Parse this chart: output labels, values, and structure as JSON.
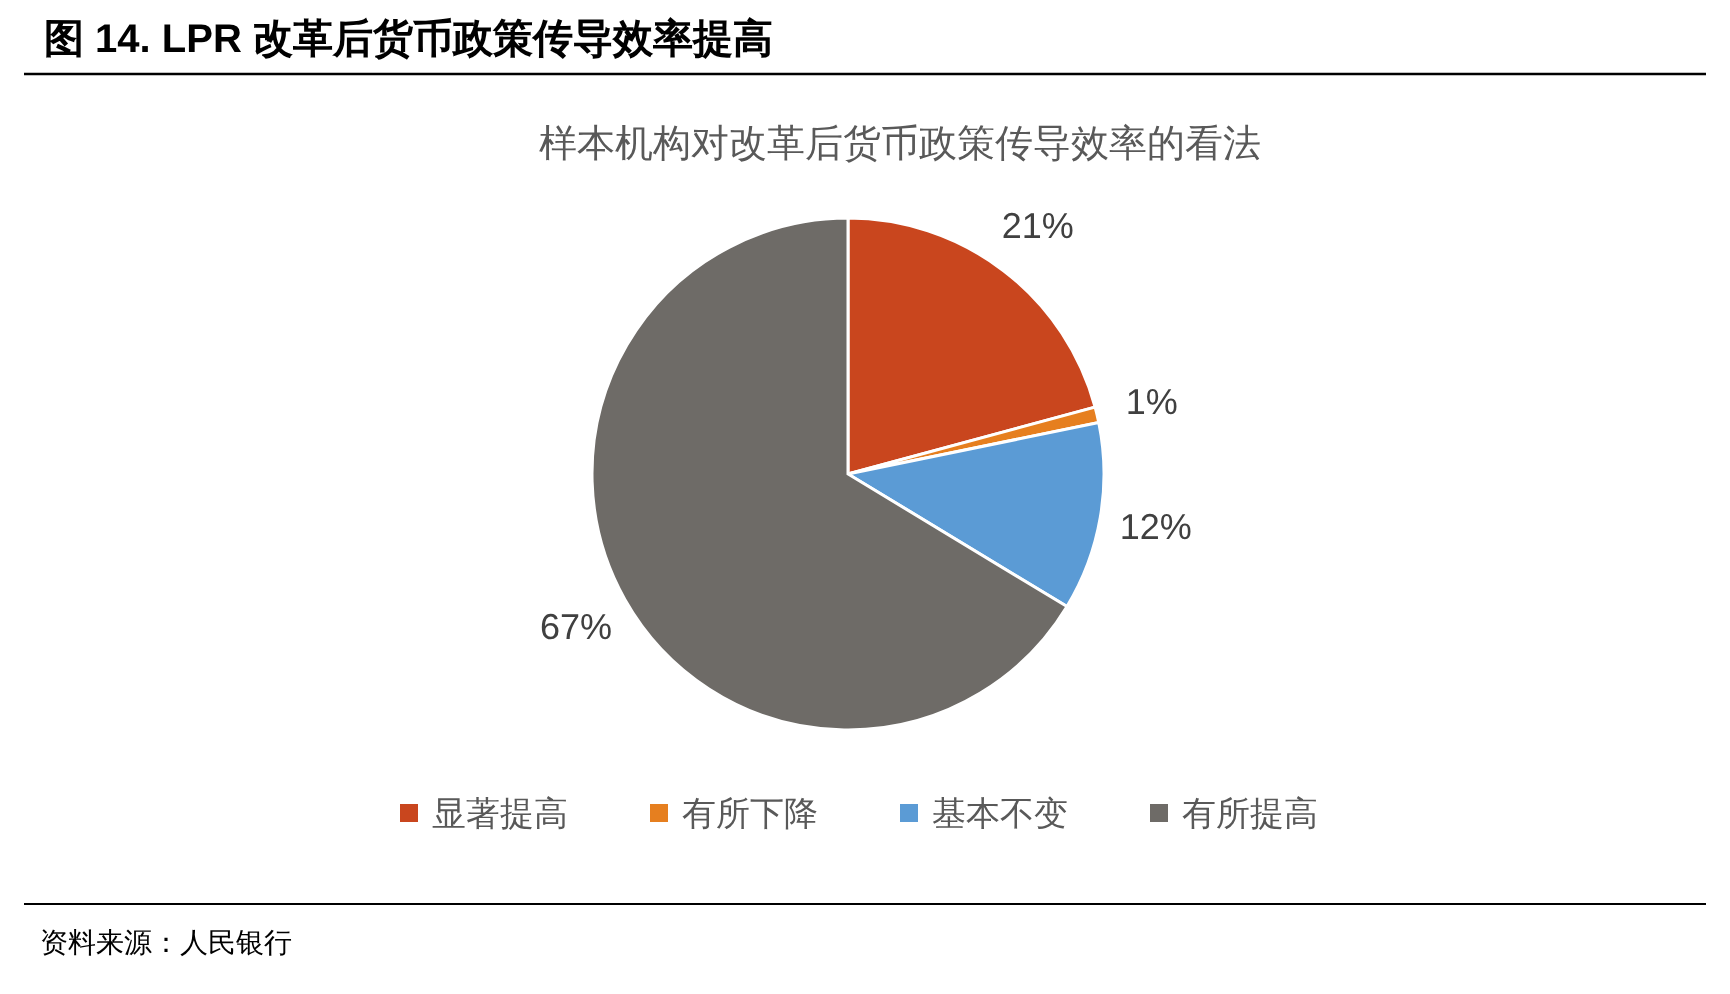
{
  "chart_data": {
    "type": "pie",
    "title": "图 14. LPR 改革后货币政策传导效率提高",
    "subtitle": "样本机构对改革后货币政策传导效率的看法",
    "categories": [
      "显著提高",
      "有所下降",
      "基本不变",
      "有所提高"
    ],
    "values": [
      21,
      1,
      12,
      67
    ],
    "colors": [
      "#c9461e",
      "#e67f1f",
      "#5b9bd5",
      "#6e6b67"
    ],
    "value_labels": [
      "21%",
      "1%",
      "12%",
      "67%"
    ],
    "legend": "bottom",
    "annotations": [
      "资料来源：人民银行"
    ]
  }
}
